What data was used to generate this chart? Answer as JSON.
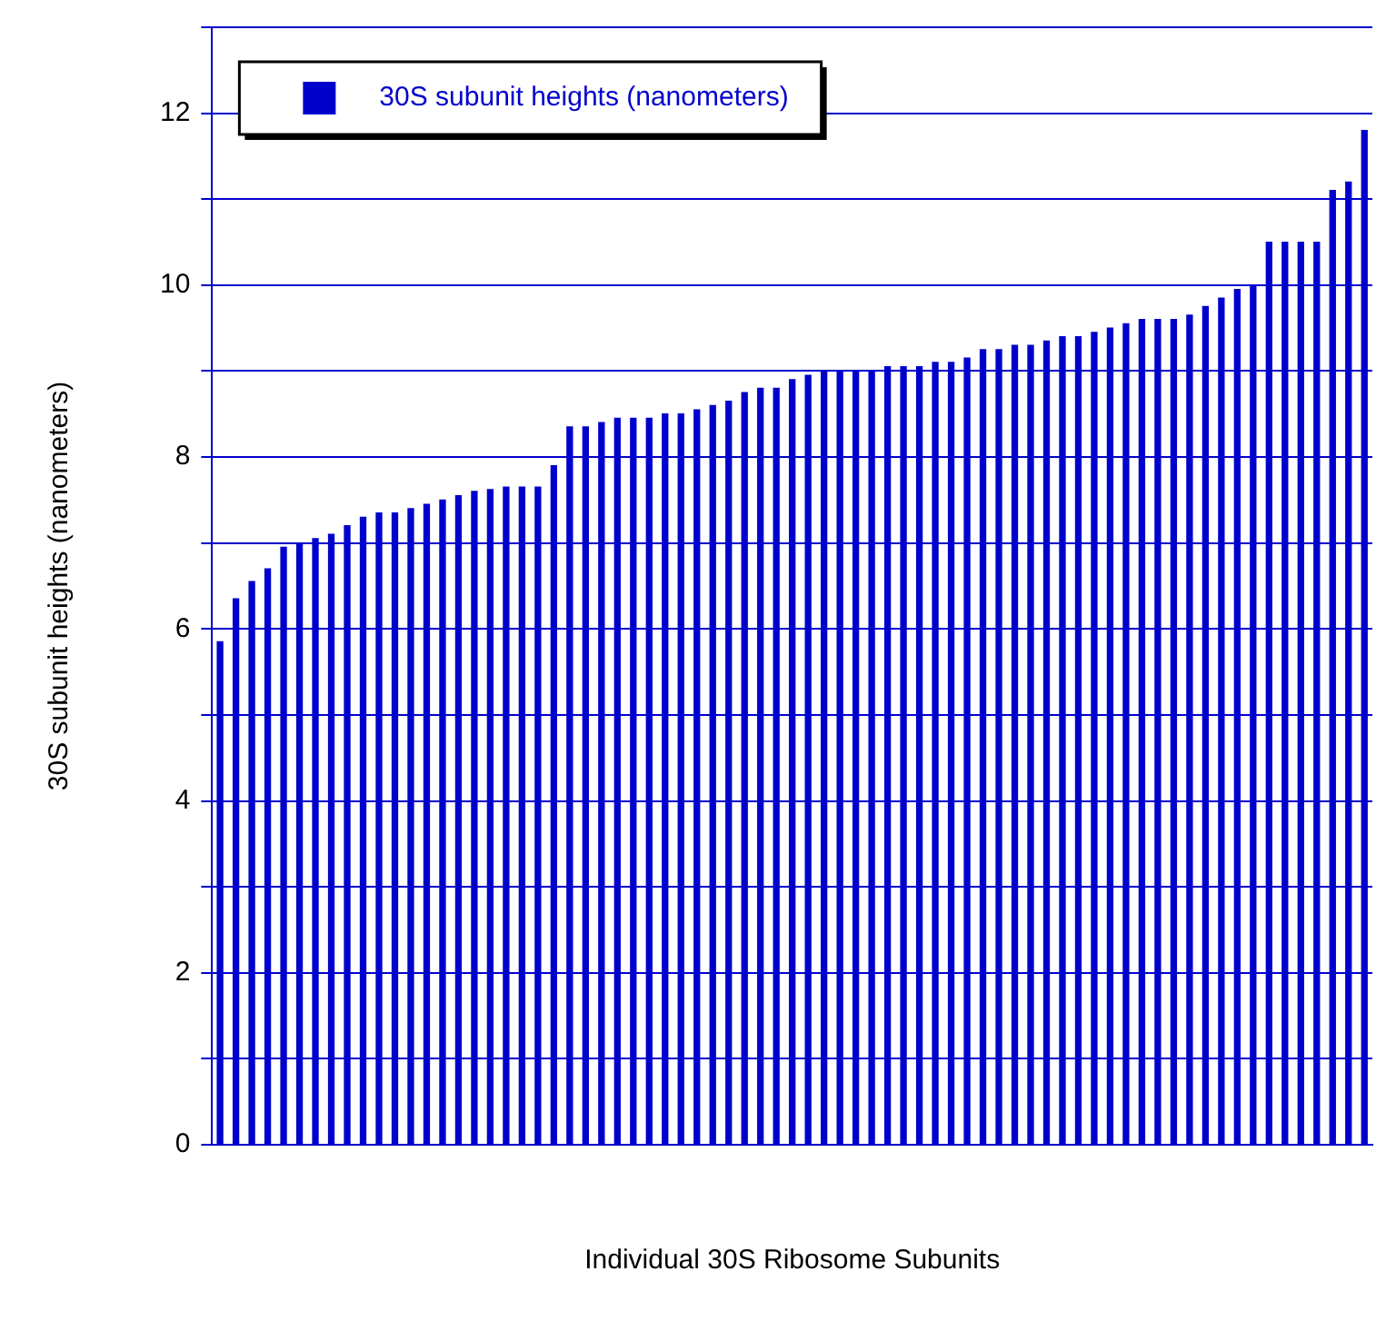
{
  "chart_data": {
    "type": "bar",
    "xlabel": "Individual 30S Ribosome Subunits",
    "ylabel": "30S subunit heights (nanometers)",
    "categories": [
      null,
      null,
      null,
      null,
      null,
      null,
      null,
      null,
      null,
      null,
      null,
      null,
      null,
      null,
      null,
      null,
      null,
      null,
      null,
      null,
      null,
      null,
      null,
      null,
      null,
      null,
      null,
      null,
      null,
      null,
      null,
      null,
      null,
      null,
      null,
      null,
      null,
      null,
      null,
      null,
      null,
      null,
      null,
      null,
      null,
      null,
      null,
      null,
      null,
      null,
      null,
      null,
      null,
      null,
      null,
      null,
      null,
      null,
      null,
      null,
      null,
      null,
      null,
      null,
      null,
      null,
      null,
      null,
      null,
      null,
      null,
      null,
      null
    ],
    "series": [
      {
        "name": "30S subunit heights (nanometers)",
        "color": "#0000cc",
        "values": [
          5.85,
          6.35,
          6.55,
          6.7,
          6.95,
          7.0,
          7.05,
          7.1,
          7.2,
          7.3,
          7.35,
          7.35,
          7.4,
          7.45,
          7.5,
          7.55,
          7.6,
          7.62,
          7.65,
          7.65,
          7.65,
          7.9,
          8.35,
          8.35,
          8.4,
          8.45,
          8.45,
          8.45,
          8.5,
          8.5,
          8.55,
          8.6,
          8.65,
          8.75,
          8.8,
          8.8,
          8.9,
          8.95,
          9.0,
          9.0,
          9.0,
          9.0,
          9.05,
          9.05,
          9.05,
          9.1,
          9.1,
          9.15,
          9.25,
          9.25,
          9.3,
          9.3,
          9.35,
          9.4,
          9.4,
          9.45,
          9.5,
          9.55,
          9.6,
          9.6,
          9.6,
          9.65,
          9.75,
          9.85,
          9.95,
          10.0,
          10.5,
          10.5,
          10.5,
          10.5,
          11.1,
          11.2,
          11.8
        ]
      }
    ],
    "ylim": [
      0,
      13
    ],
    "yticks": [
      0,
      {
        "value": 1,
        "label": null
      },
      2,
      {
        "value": 3,
        "label": null
      },
      4,
      {
        "value": 5,
        "label": null
      },
      6,
      {
        "value": 7,
        "label": null
      },
      8,
      {
        "value": 9,
        "label": null
      },
      10,
      {
        "value": 11,
        "label": null
      },
      12,
      {
        "value": 13,
        "label": null
      }
    ],
    "grid": "y",
    "legend": "top left"
  }
}
